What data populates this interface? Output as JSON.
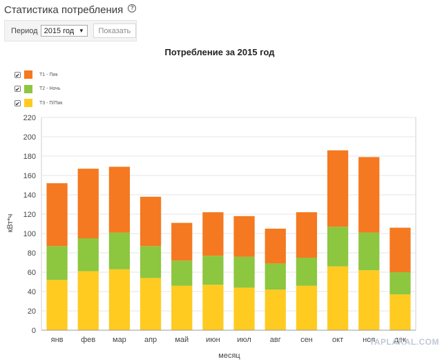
{
  "header": {
    "title": "Статистика потребления",
    "help_icon": "question-circle-icon"
  },
  "filter": {
    "period_label": "Период",
    "period_value": "2015 год",
    "show_button": "Показать"
  },
  "legend": [
    {
      "label": "T1 - Пик",
      "color": "#f47920",
      "checked": "✔"
    },
    {
      "label": "T2 - Ночь",
      "color": "#8dc63f",
      "checked": "✔"
    },
    {
      "label": "T3 - П/Пик",
      "color": "#ffcb21",
      "checked": "✔"
    }
  ],
  "watermark": "YAPLAKAL.COM",
  "chart_data": {
    "type": "bar",
    "stacked": true,
    "title": "Потребление за 2015 год",
    "xlabel": "месяц",
    "ylabel": "кВт*ч",
    "ylim": [
      0,
      220
    ],
    "yticks": [
      0,
      20,
      40,
      60,
      80,
      100,
      120,
      140,
      160,
      180,
      200,
      220
    ],
    "grid": "horizontal",
    "categories": [
      "янв",
      "фев",
      "мар",
      "апр",
      "май",
      "июн",
      "июл",
      "авг",
      "сен",
      "окт",
      "ноя",
      "дек"
    ],
    "series": [
      {
        "name": "T3 - П/Пик",
        "color": "#ffcb21",
        "values": [
          52,
          61,
          63,
          54,
          46,
          47,
          44,
          42,
          46,
          66,
          62,
          37
        ]
      },
      {
        "name": "T2 - Ночь",
        "color": "#8dc63f",
        "values": [
          35,
          34,
          38,
          33,
          26,
          30,
          32,
          27,
          29,
          41,
          39,
          23
        ]
      },
      {
        "name": "T1 - Пик",
        "color": "#f47920",
        "values": [
          65,
          72,
          68,
          51,
          39,
          45,
          42,
          36,
          47,
          79,
          78,
          46
        ]
      }
    ]
  }
}
